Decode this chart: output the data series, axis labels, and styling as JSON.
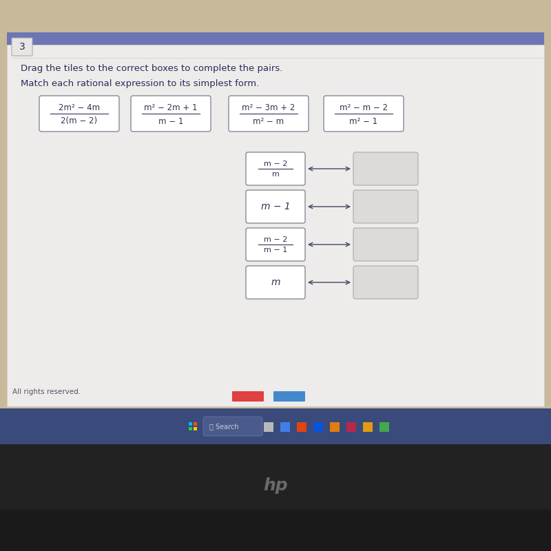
{
  "bg_outer": "#c8b99a",
  "bg_screen": "#eeecea",
  "screen_top_bar": "#6a7fc2",
  "title_number": "3",
  "instruction1": "Drag the tiles to the correct boxes to complete the pairs.",
  "instruction2": "Match each rational expression to its simplest form.",
  "tiles": [
    {
      "num": "2m² − 4m",
      "den": "2(m − 2)"
    },
    {
      "num": "m² − 2m + 1",
      "den": "m − 1"
    },
    {
      "num": "m² − 3m + 2",
      "den": "m² − m"
    },
    {
      "num": "m² − m − 2",
      "den": "m² − 1"
    }
  ],
  "left_boxes": [
    {
      "type": "fraction",
      "num": "m − 2",
      "den": "m"
    },
    {
      "type": "plain",
      "text": "m − 1"
    },
    {
      "type": "fraction",
      "num": "m − 2",
      "den": "m − 1"
    },
    {
      "type": "plain",
      "text": "m"
    }
  ],
  "text_color": "#2a2a5a",
  "box_text_color": "#333355",
  "arrow_color": "#444466",
  "tile_border": "#888899",
  "left_box_border": "#888899",
  "right_box_border": "#aaaaaa",
  "right_box_fill": "#dddbd8",
  "footer_text": "All rights reserved.",
  "taskbar_color": "#3a4a7a",
  "laptop_body": "#222222",
  "laptop_bottom": "#1a1a1a",
  "nav_red": "#e04040",
  "nav_blue": "#4488cc"
}
